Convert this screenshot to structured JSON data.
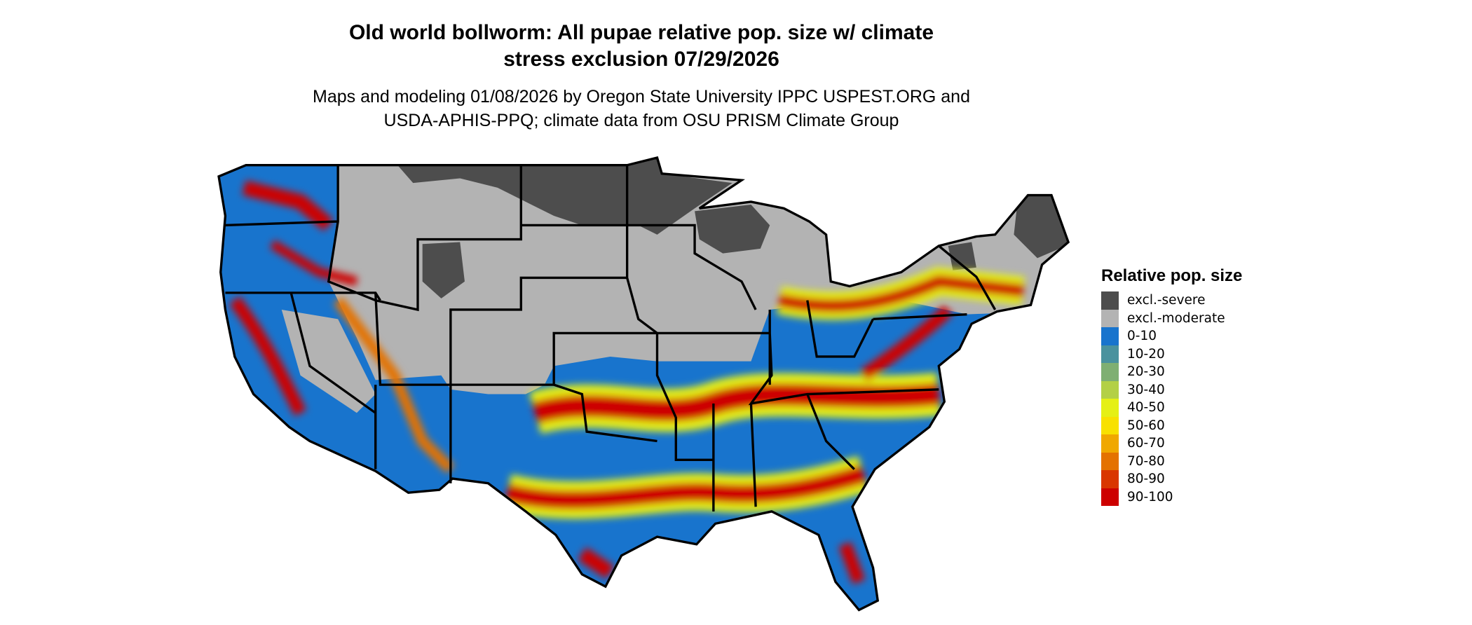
{
  "title": {
    "line1": "Old world bollworm: All pupae relative pop. size w/ climate",
    "line2": "stress exclusion 07/29/2026"
  },
  "subtitle": {
    "line1": "Maps and modeling 01/08/2026 by Oregon State University IPPC USPEST.ORG and",
    "line2": "USDA-APHIS-PPQ; climate data from OSU PRISM Climate Group"
  },
  "legend": {
    "title": "Relative pop. size",
    "items": [
      {
        "label": "excl.-severe",
        "color": "#4d4d4d"
      },
      {
        "label": "excl.-moderate",
        "color": "#b3b3b3"
      },
      {
        "label": "0-10",
        "color": "#1874cd"
      },
      {
        "label": "10-20",
        "color": "#4a929e"
      },
      {
        "label": "20-30",
        "color": "#7faf72"
      },
      {
        "label": "30-40",
        "color": "#b3d046"
      },
      {
        "label": "40-50",
        "color": "#e5f015"
      },
      {
        "label": "50-60",
        "color": "#f8e100"
      },
      {
        "label": "60-70",
        "color": "#f0a800"
      },
      {
        "label": "70-80",
        "color": "#e47200"
      },
      {
        "label": "80-90",
        "color": "#d93600"
      },
      {
        "label": "90-100",
        "color": "#cd0000"
      }
    ]
  },
  "map": {
    "region": "Contiguous United States",
    "boundaries": "state outlines"
  }
}
